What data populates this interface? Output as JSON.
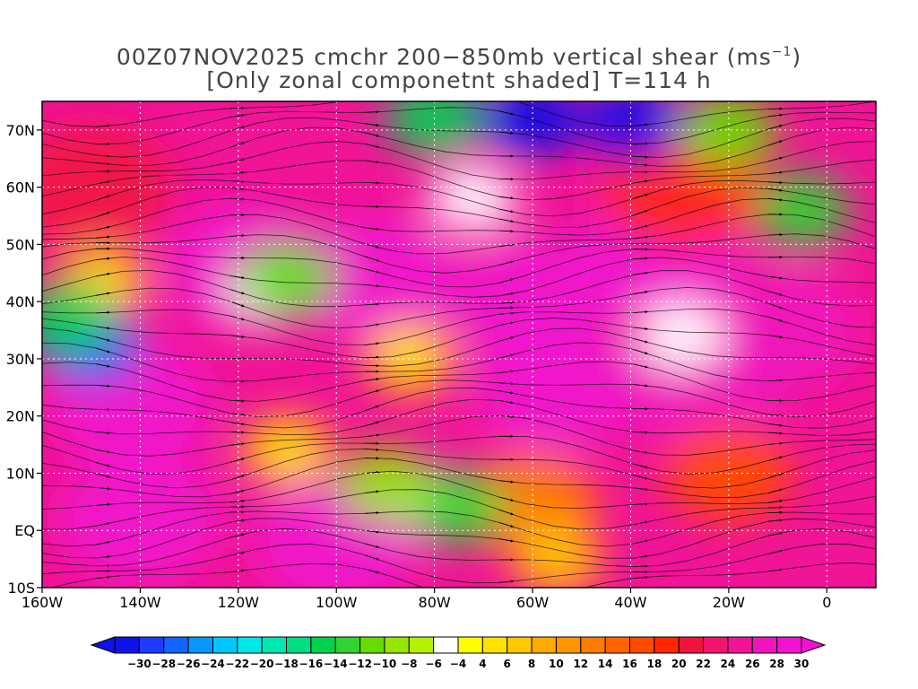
{
  "chart_data": {
    "type": "heatmap",
    "title_prefix": "00Z07NOV2025 cmchr 200−850mb vertical shear (ms",
    "title_sup": "−1",
    "title_suffix": ")",
    "subtitle": "[Only zonal componetnt shaded] T=114 h",
    "x_ticks": [
      {
        "label": "160W",
        "lon": -160
      },
      {
        "label": "140W",
        "lon": -140
      },
      {
        "label": "120W",
        "lon": -120
      },
      {
        "label": "100W",
        "lon": -100
      },
      {
        "label": "80W",
        "lon": -80
      },
      {
        "label": "60W",
        "lon": -60
      },
      {
        "label": "40W",
        "lon": -40
      },
      {
        "label": "20W",
        "lon": -20
      },
      {
        "label": "0",
        "lon": 0
      }
    ],
    "y_ticks": [
      {
        "label": "70N",
        "lat": 70
      },
      {
        "label": "60N",
        "lat": 60
      },
      {
        "label": "50N",
        "lat": 50
      },
      {
        "label": "40N",
        "lat": 40
      },
      {
        "label": "30N",
        "lat": 30
      },
      {
        "label": "20N",
        "lat": 20
      },
      {
        "label": "10N",
        "lat": 10
      },
      {
        "label": "EQ",
        "lat": 0
      },
      {
        "label": "10S",
        "lat": -10
      }
    ],
    "xlim": [
      -160,
      10
    ],
    "ylim": [
      -10,
      75
    ],
    "grid": true,
    "colorbar": {
      "levels": [
        "−30",
        "−28",
        "−26",
        "−24",
        "−22",
        "−20",
        "−18",
        "−16",
        "−14",
        "−12",
        "−10",
        "−8",
        "−6",
        "−4",
        "4",
        "6",
        "8",
        "10",
        "12",
        "14",
        "16",
        "18",
        "20",
        "22",
        "24",
        "26",
        "28",
        "30"
      ],
      "colors": [
        "#1010e8",
        "#1e3cff",
        "#1464ff",
        "#0a96ff",
        "#00c8ff",
        "#00e6e6",
        "#00e6b4",
        "#00dc82",
        "#00d250",
        "#32d232",
        "#64dc00",
        "#96e600",
        "#b4f000",
        "#ffffff",
        "#ffff00",
        "#ffe100",
        "#ffc800",
        "#ffaa00",
        "#ff9600",
        "#ff7d00",
        "#ff6400",
        "#ff4b00",
        "#ff2800",
        "#f0143c",
        "#f0146e",
        "#f01496",
        "#f014be",
        "#f014d2"
      ]
    },
    "shear_features": [
      {
        "type": "jet",
        "lon": -142,
        "lat": 22,
        "value": 30
      },
      {
        "type": "jet",
        "lon": -118,
        "lat": 46,
        "value": 30
      },
      {
        "type": "jet",
        "lon": -92,
        "lat": 44,
        "value": 30
      },
      {
        "type": "jet",
        "lon": -60,
        "lat": 40,
        "value": 30
      },
      {
        "type": "jet",
        "lon": -35,
        "lat": 48,
        "value": 30
      },
      {
        "type": "jet",
        "lon": -55,
        "lat": 25,
        "value": 30
      },
      {
        "type": "jet",
        "lon": -25,
        "lat": 25,
        "value": 28
      },
      {
        "type": "jet",
        "lon": -100,
        "lat": -2,
        "value": 30
      },
      {
        "type": "jet",
        "lon": -140,
        "lat": 2,
        "value": 30
      },
      {
        "type": "jet",
        "lon": -10,
        "lat": 35,
        "value": 28
      },
      {
        "type": "jet",
        "lon": -150,
        "lat": 60,
        "value": 22
      },
      {
        "type": "jet",
        "lon": -30,
        "lat": 60,
        "value": 20
      },
      {
        "type": "moderate",
        "lon": -20,
        "lat": 10,
        "value": 18
      },
      {
        "type": "moderate",
        "lon": -60,
        "lat": 5,
        "value": 14
      },
      {
        "type": "weak",
        "lon": -55,
        "lat": -5,
        "value": 8
      },
      {
        "type": "weak",
        "lon": -80,
        "lat": 5,
        "value": 4
      },
      {
        "type": "weak",
        "lon": -110,
        "lat": 14,
        "value": 6
      },
      {
        "type": "weak",
        "lon": -85,
        "lat": 30,
        "value": 6
      },
      {
        "type": "weak",
        "lon": -72,
        "lat": 58,
        "value": 4
      },
      {
        "type": "weak",
        "lon": -148,
        "lat": 43,
        "value": 6
      },
      {
        "type": "weak",
        "lon": -114,
        "lat": 42,
        "value": 4
      },
      {
        "type": "weak",
        "lon": -30,
        "lat": 34,
        "value": 4
      },
      {
        "type": "easterly",
        "lon": -60,
        "lat": 72,
        "value": -28
      },
      {
        "type": "easterly",
        "lon": -40,
        "lat": 71,
        "value": -30
      },
      {
        "type": "easterly",
        "lon": -80,
        "lat": 72,
        "value": -12
      },
      {
        "type": "easterly",
        "lon": -150,
        "lat": 32,
        "value": -24
      },
      {
        "type": "easterly",
        "lon": -155,
        "lat": 37,
        "value": -12
      },
      {
        "type": "easterly",
        "lon": -75,
        "lat": 4,
        "value": -10
      },
      {
        "type": "easterly",
        "lon": -90,
        "lat": 8,
        "value": -6
      },
      {
        "type": "easterly",
        "lon": -5,
        "lat": 56,
        "value": -10
      },
      {
        "type": "easterly",
        "lon": -20,
        "lat": 70,
        "value": -8
      },
      {
        "type": "easterly",
        "lon": -110,
        "lat": 44,
        "value": -8
      }
    ]
  }
}
